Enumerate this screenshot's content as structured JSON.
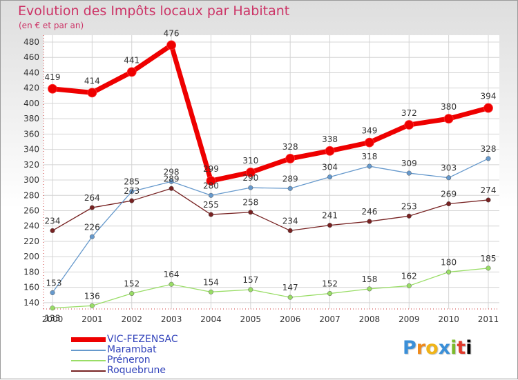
{
  "chart_data": {
    "type": "line",
    "title": "Evolution des Impôts locaux par Habitant",
    "subtitle": "(en € et par an)",
    "xlabel": "",
    "ylabel": "",
    "ylim": [
      130,
      480
    ],
    "yticks": [
      140,
      160,
      180,
      200,
      220,
      240,
      260,
      280,
      300,
      320,
      340,
      360,
      380,
      400,
      420,
      440,
      460,
      480
    ],
    "x": [
      "2000",
      "2001",
      "2002",
      "2003",
      "2004",
      "2005",
      "2006",
      "2007",
      "2008",
      "2009",
      "2010",
      "2011"
    ],
    "grid": true,
    "legend_position": "bottom-left",
    "series": [
      {
        "name": "VIC-FEZENSAC",
        "color": "#ee0000",
        "values": [
          419,
          414,
          441,
          476,
          299,
          310,
          328,
          338,
          349,
          372,
          380,
          394
        ],
        "labels": [
          "419",
          "414",
          "441",
          "476",
          "299",
          "310",
          "328",
          "338",
          "349",
          "372",
          "380",
          "394"
        ]
      },
      {
        "name": "Marambat",
        "color": "#6699cc",
        "values": [
          153,
          226,
          285,
          298,
          280,
          290,
          289,
          304,
          318,
          309,
          303,
          328
        ],
        "labels": [
          "153",
          "226",
          "285",
          "298",
          "280",
          "290",
          "289",
          "304",
          "318",
          "309",
          "303",
          "328"
        ]
      },
      {
        "name": "Préneron",
        "color": "#99dd66",
        "values": [
          133,
          136,
          152,
          164,
          154,
          157,
          147,
          152,
          158,
          162,
          180,
          185
        ],
        "labels": [
          "133",
          "136",
          "152",
          "164",
          "154",
          "157",
          "147",
          "152",
          "158",
          "162",
          "180",
          "185"
        ]
      },
      {
        "name": "Roquebrune",
        "color": "#772222",
        "values": [
          234,
          264,
          273,
          289,
          255,
          258,
          234,
          241,
          246,
          253,
          269,
          274
        ],
        "labels": [
          "234",
          "264",
          "273",
          "289",
          "255",
          "258",
          "234",
          "241",
          "246",
          "253",
          "269",
          "274"
        ]
      }
    ]
  },
  "logo": {
    "letters": [
      "P",
      "r",
      "o",
      "x",
      "i",
      "t",
      "i"
    ]
  }
}
